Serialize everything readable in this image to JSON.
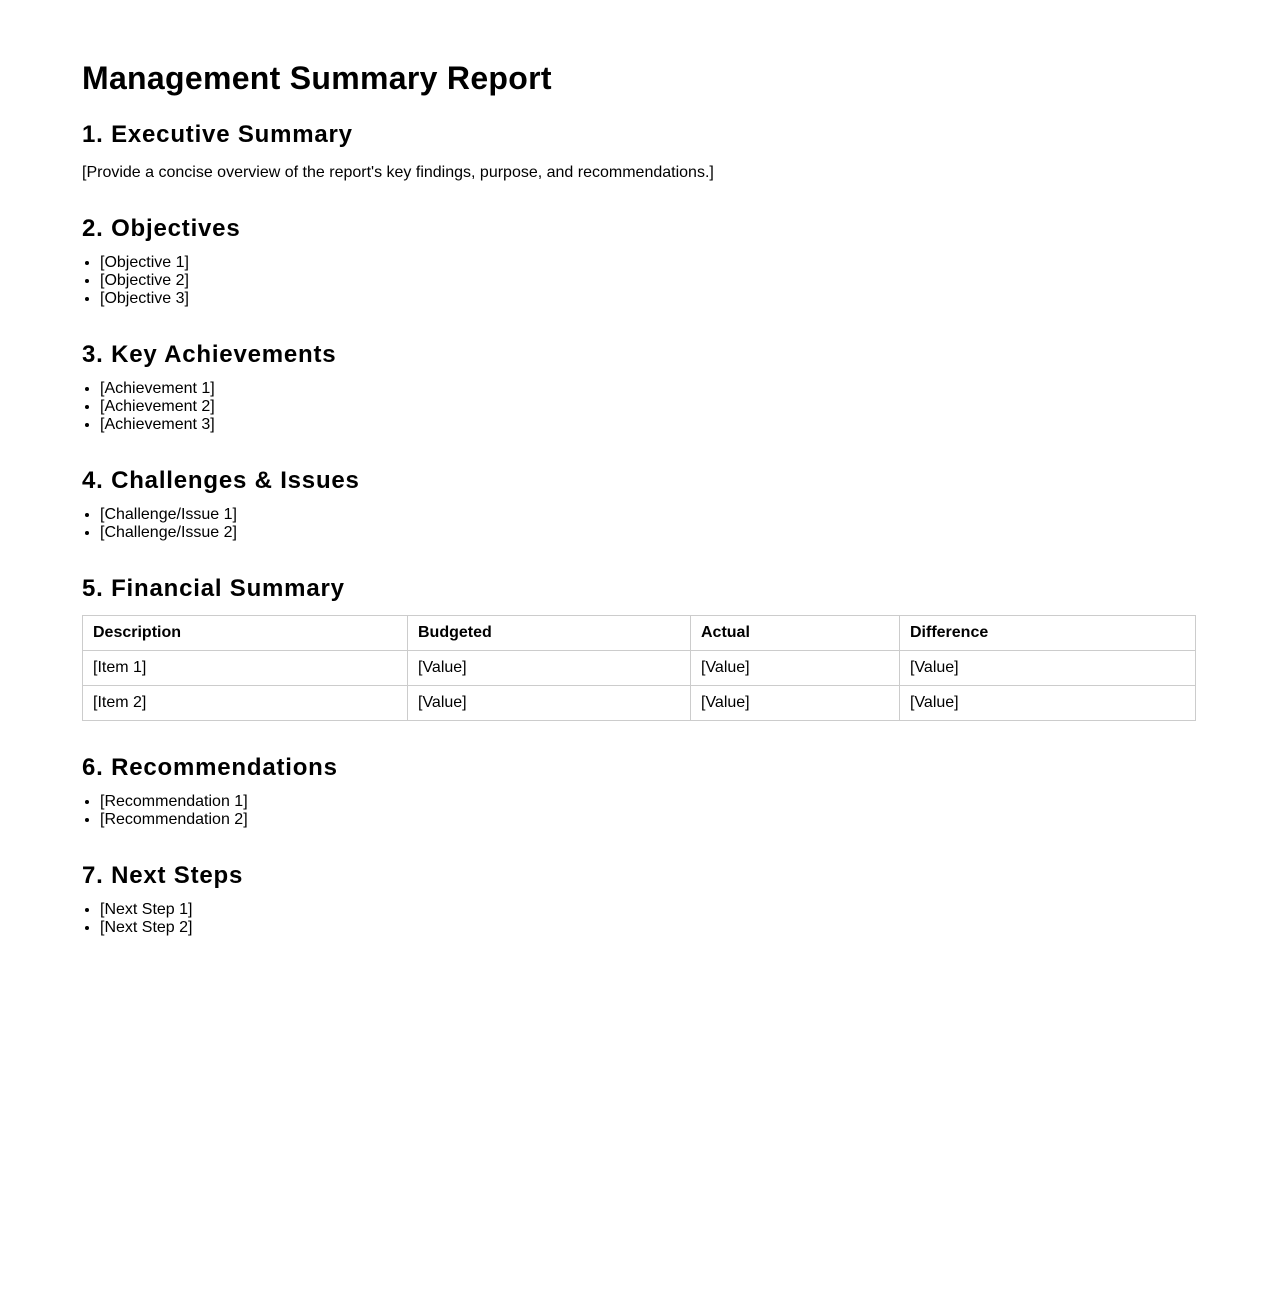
{
  "title": "Management Summary Report",
  "sections": {
    "executive": {
      "heading": "1. Executive Summary",
      "text": "[Provide a concise overview of the report's key findings, purpose, and recommendations.]"
    },
    "objectives": {
      "heading": "2. Objectives",
      "items": [
        "[Objective 1]",
        "[Objective 2]",
        "[Objective 3]"
      ]
    },
    "achievements": {
      "heading": "3. Key Achievements",
      "items": [
        "[Achievement 1]",
        "[Achievement 2]",
        "[Achievement 3]"
      ]
    },
    "challenges": {
      "heading": "4. Challenges & Issues",
      "items": [
        "[Challenge/Issue 1]",
        "[Challenge/Issue 2]"
      ]
    },
    "financial": {
      "heading": "5. Financial Summary",
      "columns": [
        "Description",
        "Budgeted",
        "Actual",
        "Difference"
      ],
      "rows": [
        [
          "[Item 1]",
          "[Value]",
          "[Value]",
          "[Value]"
        ],
        [
          "[Item 2]",
          "[Value]",
          "[Value]",
          "[Value]"
        ]
      ]
    },
    "recommendations": {
      "heading": "6. Recommendations",
      "items": [
        "[Recommendation 1]",
        "[Recommendation 2]"
      ]
    },
    "next_steps": {
      "heading": "7. Next Steps",
      "items": [
        "[Next Step 1]",
        "[Next Step 2]"
      ]
    }
  }
}
